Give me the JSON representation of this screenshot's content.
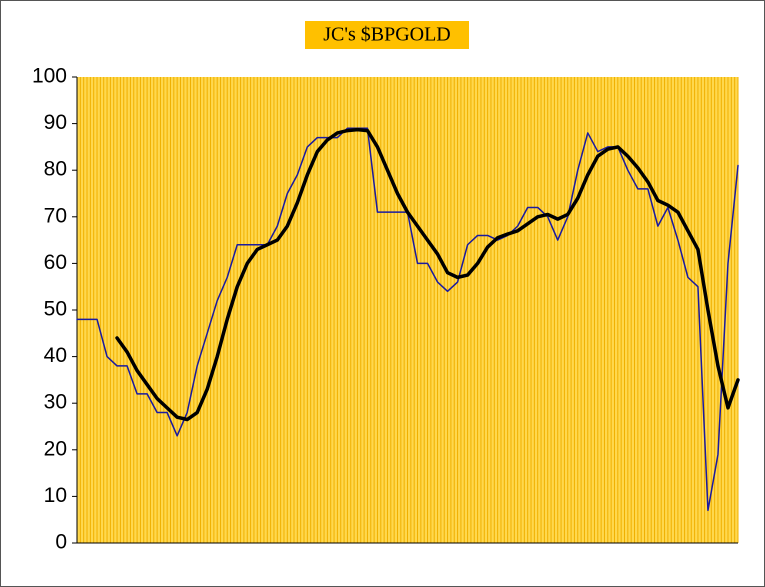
{
  "chart_data": {
    "type": "line",
    "title": "JC's $BPGOLD",
    "categories": [
      null,
      null,
      null,
      null,
      null,
      null,
      null,
      null,
      null,
      null,
      null,
      null,
      null,
      null,
      null,
      null,
      null,
      null,
      null,
      null,
      null,
      null,
      null,
      null,
      null,
      null,
      null,
      null,
      null,
      null,
      null,
      null,
      null,
      null,
      null,
      null,
      null,
      null,
      null,
      null,
      null,
      null,
      null,
      null,
      null,
      null,
      null,
      null,
      null,
      null,
      null,
      null,
      null,
      null,
      null,
      null,
      null,
      null,
      null,
      null,
      null,
      null,
      null,
      null,
      null,
      null,
      null
    ],
    "series": [
      {
        "color": "#1a1aa0",
        "values": [
          48,
          48,
          48,
          40,
          38,
          38,
          32,
          32,
          28,
          28,
          23,
          28,
          38,
          45,
          52,
          57,
          64,
          64,
          64,
          64,
          68,
          75,
          79,
          85,
          87,
          87,
          87,
          89,
          89,
          89,
          71,
          71,
          71,
          71,
          60,
          60,
          56,
          54,
          56,
          64,
          66,
          66,
          65,
          66,
          68,
          72,
          72,
          70,
          65,
          70,
          80,
          88,
          84,
          85,
          85,
          80,
          76,
          76,
          68,
          72,
          65,
          57,
          55,
          7,
          19,
          60,
          81
        ]
      },
      {
        "color": "#000000",
        "values": [
          null,
          null,
          null,
          null,
          44,
          41,
          37,
          34,
          31,
          29,
          27,
          26.5,
          28,
          33,
          40,
          48,
          55,
          60,
          63,
          64,
          65,
          68,
          73,
          79,
          84,
          86.5,
          88,
          88.5,
          88.7,
          88.5,
          85,
          80,
          75,
          71,
          68,
          65,
          62,
          58,
          57,
          57.5,
          60,
          63.5,
          65.5,
          66.3,
          67,
          68.5,
          70,
          70.5,
          69.5,
          70.5,
          74,
          79,
          83,
          84.5,
          85,
          83,
          80.5,
          77.5,
          73.5,
          72.5,
          71,
          67,
          63,
          50,
          38,
          29,
          35
        ]
      }
    ],
    "ylim": [
      0,
      100
    ],
    "yticks": [
      0,
      10,
      20,
      30,
      40,
      50,
      60,
      70,
      80,
      90,
      100
    ],
    "grid": true,
    "background": "#ffd84d",
    "title_background": "#ffc000"
  }
}
